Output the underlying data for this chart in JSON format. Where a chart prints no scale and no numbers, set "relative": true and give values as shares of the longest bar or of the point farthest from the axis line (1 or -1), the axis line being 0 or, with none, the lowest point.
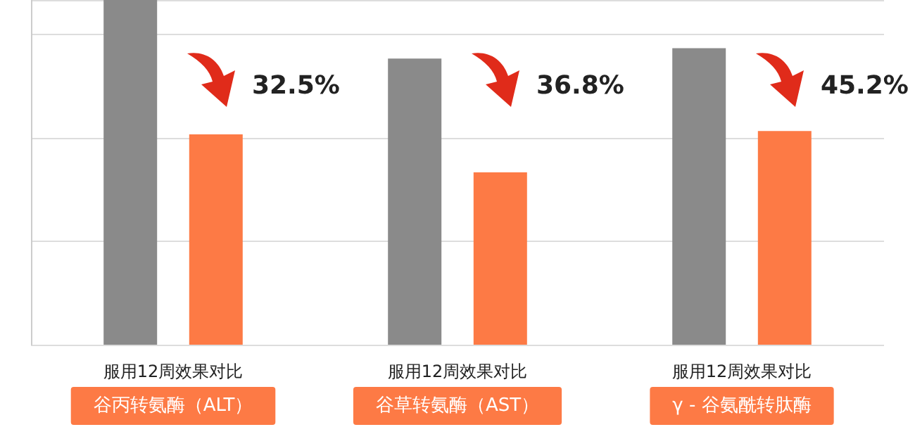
{
  "chart_data": {
    "type": "bar",
    "relative": true,
    "grid": "y",
    "categories": [
      "谷丙转氨酶（ALT）",
      "谷草转氨酶（AST）",
      "γ - 谷氨酰转肽酶"
    ],
    "series": [
      {
        "color": "#8a8a8a",
        "values": [
          1,
          0.83,
          0.86
        ]
      },
      {
        "color": "#fd7a45",
        "values": [
          0.61,
          0.5,
          0.62
        ]
      }
    ],
    "annotations": [
      "服用12周效果对比",
      "服用12周效果对比",
      "服用12周效果对比",
      "32.5%",
      "36.8%",
      "45.2%"
    ]
  }
}
